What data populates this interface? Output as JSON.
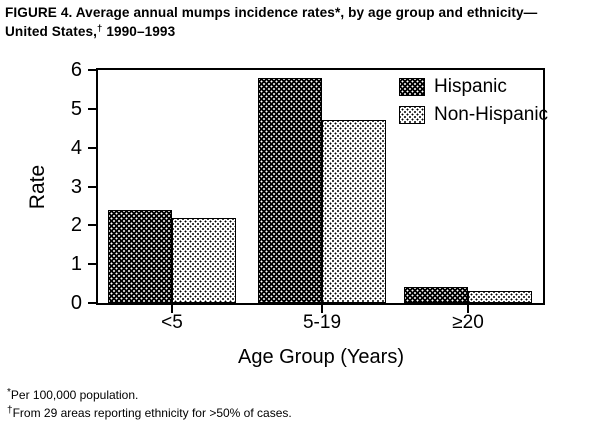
{
  "figure": {
    "title_line1": "FIGURE 4. Average annual mumps incidence rates*, by age group and ethnicity—",
    "title_line2_pre": "United States,",
    "title_line2_sup": "†",
    "title_line2_post": " 1990–1993"
  },
  "chart_data": {
    "type": "bar",
    "title": "FIGURE 4. Average annual mumps incidence rates*, by age group and ethnicity—United States,† 1990–1993",
    "categories": [
      "<5",
      "5-19",
      "≥20"
    ],
    "series": [
      {
        "name": "Hispanic",
        "values": [
          2.4,
          5.8,
          0.4
        ],
        "pattern": "white-dots-on-black"
      },
      {
        "name": "Non-Hispanic",
        "values": [
          2.2,
          4.7,
          0.3
        ],
        "pattern": "black-dots-on-white"
      }
    ],
    "xlabel": "Age Group (Years)",
    "ylabel": "Rate",
    "ylim": [
      0,
      6
    ],
    "yticks": [
      0,
      1,
      2,
      3,
      4,
      5,
      6
    ],
    "grid": false,
    "legend_position": "top-right-inside",
    "colors": {
      "foreground": "#000000",
      "background": "#ffffff"
    }
  },
  "footnotes": [
    {
      "symbol": "*",
      "text": "Per 100,000 population."
    },
    {
      "symbol": "†",
      "text": "From 29 areas reporting ethnicity for >50% of cases."
    }
  ]
}
